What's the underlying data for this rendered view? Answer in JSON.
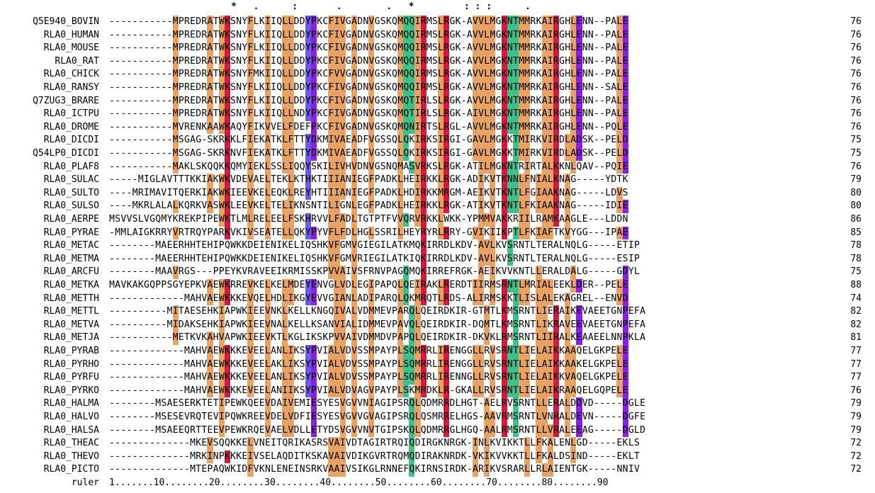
{
  "consensus": "                      *   .      :       .        .   *         : : :      .",
  "rows": [
    {
      "name": "Q5E940_BOVIN",
      "seq": "-----------MPREDRATWKSNYFLKIIQLLDDYPKCFIVGADNVGSKQMQQIRMSLRGK-AVVLMGKNTMMRKAIRGHLENN--PALE",
      "end": "76"
    },
    {
      "name": "RLA0_HUMAN",
      "seq": "-----------MPREDRATWKSNYFLKIIQLLDDYPKCFIVGADNVGSKQMQQIRMSLRGK-AVVLMGKNTMMRKAIRGHLENN--PALE",
      "end": "76"
    },
    {
      "name": "RLA0_MOUSE",
      "seq": "-----------MPREDRATWKSNYFLKIIQLLDDYPKCFIVGADNVGSKQMQQIRMSLRGK-AVVLMGKNTMMRKAIRGHLENN--PALE",
      "end": "76"
    },
    {
      "name": "RLA0_RAT",
      "seq": "-----------MPREDRATWKSNYFLKIIQLLDDYPKCFIVGADNVGSKQMQQIRMSLRGK-AVVLMGKNTMMRKAIRGHLENN--PALE",
      "end": "76"
    },
    {
      "name": "RLA0_CHICK",
      "seq": "-----------MPREDRATWKSNYFMKIIQLLDDYPKCFVVGADNVGSKQMQQIRMSLRGK-AVVLMGKNTMMRKAIRGHLENN--PALE",
      "end": "76"
    },
    {
      "name": "RLA0_RANSY",
      "seq": "-----------MPREDRATWKSNYFLKIIQLLDDYPKCFIVGADNVGSKQMQQIRMSLRGK-AVVLMGKNTMMRKAIRGHLENN--SALE",
      "end": "76"
    },
    {
      "name": "Q7ZUG3_BRARE",
      "seq": "-----------MPREDRATWKSNYFLKIIQLLDDYPKCFIVGADNVGSKQMQTIRLSLRGK-AVVLMGKNTMMRKAIRGHLENN--PALE",
      "end": "76"
    },
    {
      "name": "RLA0_ICTPU",
      "seq": "-----------MPREDRATWKSNYFLKIIQLLNDYPKCFIVGADNVGSKQMQTIRLSLRGK-AIVLMGKNTMMRKAIRGHLENN--PALE",
      "end": "76"
    },
    {
      "name": "RLA0_DROME",
      "seq": "-----------MVRENKAAWKAQYFIKVVELFDEFPKCFIVGADNVGSKQMQNIRTSLRGL-AVVLMGKNTMMRKAIRGHLENN--PQLE",
      "end": "76"
    },
    {
      "name": "RLA0_DICDI",
      "seq": "-----------MSGAG-SKRKKLFIEKATKLFTTYDKMIVAEADFVGSSQLQKIRKSIRGI-GAVLMGKKTMIRKVIRDLADSK--PELD",
      "end": "75"
    },
    {
      "name": "Q54LP0_DICDI",
      "seq": "-----------MSGAG-SKRKNVFIEKATKLFTTYDKMIVAEADFVGSSQLQKIRKSIRGI-GAVLMGKKTMIRKVIRDLADSK--PELD",
      "end": "75"
    },
    {
      "name": "RLA0_PLAF8",
      "seq": "-----------MAKLSKQQKKQMYIEKLSSLIQQYSKILIVHVDNVGSNQMASVRKSLRGK-ATILMGKNTRIRTALKKNLQAV--PQIE",
      "end": "76"
    },
    {
      "name": "RLA0_SULAC",
      "seq": "-----MIGLAVTTTKKIAKWKVDEVAELTEKLKTHKTIIIANIEGFPADKLHEIRKKLRGK-ADIKVTKNNLFNIALKNAG-----YDTK",
      "end": "79"
    },
    {
      "name": "RLA0_SULTO",
      "seq": "----MRIMAVITQERKIAKWKIEEVKELEQKLREYHTIIIANIEGFPADKLHDIRKKMRGM-AEIKVTKNTLFGIAAKNAG-----LDVS",
      "end": "80"
    },
    {
      "name": "RLA0_SULSO",
      "seq": "----MKRLALALKQRKVASWKLEEVKELTELIKNSNTILIGNLEGFPADKLHEIRKKLRGK-ATIKVTKNTLFKIAAKNAG-----IDIE",
      "end": "80"
    },
    {
      "name": "RLA0_AERPE",
      "seq": "MSVVSLVGQMYKREKPIPEWKTLMLRELEELFSKHRVVLFADLTGTPTFVVQRVRKKLWKK-YPMMVAKKRIILRAMKAAGLE---LDDN",
      "end": "86"
    },
    {
      "name": "RLA0_PYRAE",
      "seq": "-MMLAIGKRRYVRTRQYPARKVKIVSEATELLQKYPYVFLFDLHGLSSRILHEYRYRLRRY-GVIKIIKPTLFKIAFTKVYGG---IPAE",
      "end": "85"
    },
    {
      "name": "RLA0_METAC",
      "seq": "--------MAEERHHTEHIPQWKKDEIENIKELIQSHKVFGMVGIEGILATKMQKIRRDLKDV-AVLKVSRNTLTERALNQLG-----ETIP",
      "end": "78"
    },
    {
      "name": "RLA0_METMA",
      "seq": "--------MAEERHHTEHIPQWKKDEIENIKELIQSHKVFGMVRIEGILATKIQKIRRDLKDV-AVLKVSRNTLTERALNQLG-----ESIP",
      "end": "78"
    },
    {
      "name": "RLA0_ARCFU",
      "seq": "--------MAAVRGS---PPEYKVRAVEEIKRMISSKPVVAIVSFRNVPAGQMQKIRREFRGK-AEIKVVKNTLLERALDALG-----GDYL",
      "end": "75"
    },
    {
      "name": "RLA0_METKA",
      "seq": "MAVKAKGQPPSGYEPKVAEWKRREVKELKELMDEYENVGLVDLEGIPAPQLQEIRAKLRERDTIIRMSRNTLMRIALEEKLDER--PELE",
      "end": "88"
    },
    {
      "name": "RLA0_METTH",
      "seq": "-------------MAHVAEWKKKEVQELHDLIKGYEVVGIANLADIPARQLQKMRQTLRDS-ALIRMSKKTLISLALEKAGREL--ENVD",
      "end": "74"
    },
    {
      "name": "RLA0_METTL",
      "seq": "----------MITAESEHKIAPWKIEEVNKLKELLKNGQIVALVDMMEVPARQLQEIRDKIR-GTMTLKMSRNTLIERAIKEVAEETGNPEFA",
      "end": "82"
    },
    {
      "name": "RLA0_METVA",
      "seq": "----------MIDAKSEHKIAPWKIEEVNALKELLKSANVIALIDMMEVPAVQLQEIRDKIR-DQMTLKMSRNTLIKRAVEEVAEETGNPEFA",
      "end": "82"
    },
    {
      "name": "RLA0_METJA",
      "seq": "-----------METKVKAHVAPWKIEEVKTLKGLIKSKPVVAIVDMMDVPAPQLQEIRDKIR-DKVKLRMSRNTLIIRALKEAAEELNNPKLA",
      "end": "81"
    },
    {
      "name": "RLA0_PYRAB",
      "seq": "-------------MAHVAEWKKKEVEELANLIKSYPVIALVDVSSMPAYPLSQMRRLIRENGGLLRVSRNTLIELAIKKAAQELGKPELE",
      "end": "77"
    },
    {
      "name": "RLA0_PYRHO",
      "seq": "-------------MAHVAEWKKKEVEELAKLIKSYPVIALVDVSSMPAYPLSQMRRLIRENGGLLRVSRNTLIELAIKKAAKELGKPELE",
      "end": "77"
    },
    {
      "name": "RLA0_PYRFU",
      "seq": "-------------MAHVAEWKKKEVEELANLIKSYPVIALVDVSSMPAYPLSQMRRLIRENNGLLRVSRNTLIELAIKKVAQELGKPELE",
      "end": "77"
    },
    {
      "name": "RLA0_PYRKO",
      "seq": "-------------MAHVAEWKKKEVEELANIIKSYPVIALVDVAGVPAYPLSKMRDKLR-GKALLRVSRNTLIELAIKRAAQELGQPELE",
      "end": "76"
    },
    {
      "name": "RLA0_HALMA",
      "seq": "--------MSAESERKTETIPEWKQEEVDAIVEMIESYESVGVVNIAGIPSRQLQDMRRDLHGT-AELRVSRNTLLERALDDVD-----DGLE",
      "end": "79"
    },
    {
      "name": "RLA0_HALVO",
      "seq": "--------MSESEVRQTEVIPQWKREEVDELVDFIESYESVGVVGVAGIPSRQLQSMRRELHGS-AAVRMSRNTLVNRALDEVN-----DGFE",
      "end": "79"
    },
    {
      "name": "RLA0_HALSA",
      "seq": "--------MSAEEQRTTEEVPEWKRQEVAELVDLLETYDSVGVVNVTGIPSKQLQDMRRGLHGQ-AALRMSRNTLLVRALEEAG-----DGLD",
      "end": "79"
    },
    {
      "name": "RLA0_THEAC",
      "seq": "--------------MKEVSQQKKELVNEITQRIKASRSVAIVDTAGIRTRQIQDIRGKNRGK-INLKVIKKTLLFKALENLGD-----EKLS",
      "end": "72"
    },
    {
      "name": "RLA0_THEVO",
      "seq": "--------------MRKINPKKKEIVSELAQDITKSKAVAIVDIKGVRTRQMQDIRAKNRDK-VKIKVVKKTLLFKALDSIND-----EKLT",
      "end": "72"
    },
    {
      "name": "RLA0_PICTO",
      "seq": "--------------MTEPAQWKIDFVKNLENEINSRKVAAIVSIKGLRNNEFQKIRNSIRDK-ARIKVSRARLLRLAIENTGK-----NNIV",
      "end": "72"
    }
  ],
  "ruler": {
    "name": "ruler",
    "text": "1.......10........20........30........40........50........60........70........80........90"
  },
  "colors": {
    "orange": "#e8a364",
    "blue": "#6b5ce6",
    "purple": "#8b1fe6",
    "red": "#d11c40",
    "green": "#3fc08a",
    "darkorange": "#c07830"
  }
}
